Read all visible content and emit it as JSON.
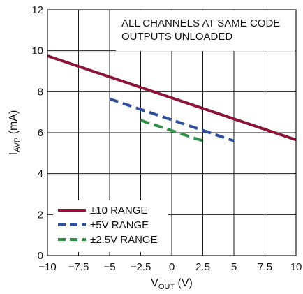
{
  "chart_data": {
    "type": "line",
    "title": "",
    "xlabel": {
      "main": "V",
      "sub": "OUT",
      "unit": " (V)"
    },
    "ylabel": {
      "main": "I",
      "sub": "AVP",
      "unit": " (mA)"
    },
    "xlim": [
      -10,
      10
    ],
    "ylim": [
      0,
      12
    ],
    "xticks": [
      -10,
      -7.5,
      -5,
      -2.5,
      0,
      2.5,
      5,
      7.5,
      10
    ],
    "xtick_labels": [
      "−10",
      "−7.5",
      "−5",
      "−2.5",
      "0",
      "2.5",
      "5",
      "7.5",
      "10"
    ],
    "yticks": [
      0,
      2,
      4,
      6,
      8,
      10,
      12
    ],
    "ytick_labels": [
      "0",
      "2",
      "4",
      "6",
      "8",
      "10",
      "12"
    ],
    "grid": true,
    "annotations": [
      "ALL CHANNELS AT SAME CODE",
      "OUTPUTS UNLOADED"
    ],
    "legend_position": "bottom-left",
    "series": [
      {
        "name": "±10 RANGE",
        "color": "#8b1538",
        "style": "solid",
        "x": [
          -10,
          10
        ],
        "y": [
          9.75,
          5.65
        ]
      },
      {
        "name": "±5V RANGE",
        "color": "#2e4f9a",
        "style": "dashed",
        "x": [
          -5,
          5
        ],
        "y": [
          7.65,
          5.6
        ]
      },
      {
        "name": "±2.5V RANGE",
        "color": "#2f8f46",
        "style": "dashed",
        "x": [
          -2.5,
          2.5
        ],
        "y": [
          6.6,
          5.6
        ]
      }
    ]
  }
}
